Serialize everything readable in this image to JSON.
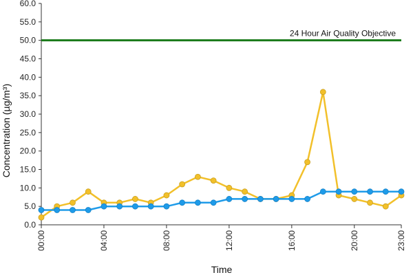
{
  "chart_data": {
    "type": "line",
    "xlabel": "Time",
    "ylabel": "Concentration (µg/m³)",
    "ylim": [
      0,
      60
    ],
    "y_ticks": [
      "0.0",
      "5.0",
      "10.0",
      "15.0",
      "20.0",
      "25.0",
      "30.0",
      "35.0",
      "40.0",
      "45.0",
      "50.0",
      "55.0",
      "60.0"
    ],
    "x": [
      "00:00",
      "01:00",
      "02:00",
      "03:00",
      "04:00",
      "05:00",
      "06:00",
      "07:00",
      "08:00",
      "09:00",
      "10:00",
      "11:00",
      "12:00",
      "13:00",
      "14:00",
      "15:00",
      "16:00",
      "17:00",
      "18:00",
      "19:00",
      "20:00",
      "21:00",
      "22:00",
      "23:00"
    ],
    "x_tick_labels": [
      "00:00",
      "04:00",
      "08:00",
      "12:00",
      "16:00",
      "20:00",
      "23:00"
    ],
    "x_tick_hours": [
      0,
      4,
      8,
      12,
      16,
      20,
      23
    ],
    "grid": false,
    "legend": "none",
    "series": [
      {
        "color": "#f2c02a",
        "values": [
          2,
          5,
          6,
          9,
          6,
          6,
          7,
          6,
          8,
          11,
          13,
          12,
          10,
          9,
          7,
          7,
          8,
          17,
          36,
          8,
          7,
          6,
          5,
          8
        ]
      },
      {
        "color": "#1e9be9",
        "values": [
          4,
          4,
          4,
          4,
          5,
          5,
          5,
          5,
          5,
          6,
          6,
          6,
          7,
          7,
          7,
          7,
          7,
          7,
          9,
          9,
          9,
          9,
          9,
          9
        ]
      }
    ],
    "reference_line": {
      "value": 50,
      "label": "24 Hour Air Quality Objective",
      "color": "#1a7a1a"
    }
  }
}
